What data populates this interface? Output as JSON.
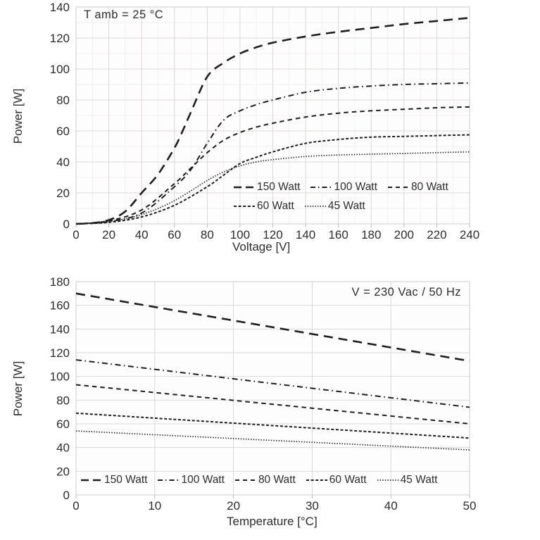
{
  "page": {
    "colors": {
      "line": "#1f1f1f",
      "text": "#2d2d2d",
      "grid_major_top": "#ded9d9",
      "grid_minor_top": "#f2efef",
      "grid_major_bottom": "#d9d9d9",
      "border": "#cfcccc",
      "background": "#ffffff"
    }
  },
  "chart_data": [
    {
      "type": "line",
      "title": "",
      "annotation": "T amb = 25 °C",
      "xlabel": "Voltage  [V]",
      "ylabel": "Power [W]",
      "xlim": [
        0,
        240
      ],
      "ylim": [
        0,
        140
      ],
      "xticks": [
        0,
        20,
        40,
        60,
        80,
        100,
        120,
        140,
        160,
        180,
        200,
        220,
        240
      ],
      "yticks": [
        0,
        20,
        40,
        60,
        80,
        100,
        120,
        140
      ],
      "grid": "major+minor",
      "minor_step": {
        "x": 10,
        "y": 10
      },
      "legend_position": "inside-bottom-right",
      "series": [
        {
          "name": "150 Watt",
          "dash": "long-dash",
          "x": [
            0,
            10,
            20,
            30,
            40,
            50,
            60,
            65,
            70,
            80,
            90,
            100,
            110,
            120,
            140,
            160,
            180,
            200,
            220,
            240
          ],
          "y": [
            0,
            0.5,
            2.5,
            8,
            20,
            32,
            49,
            60,
            72,
            95,
            104,
            110,
            114,
            117,
            121,
            124,
            126.5,
            129,
            131,
            133
          ]
        },
        {
          "name": "100 Watt",
          "dash": "dash-dot",
          "x": [
            0,
            20,
            40,
            60,
            70,
            80,
            90,
            100,
            110,
            120,
            140,
            160,
            180,
            200,
            220,
            240
          ],
          "y": [
            0,
            1.5,
            7,
            24,
            35,
            52,
            67,
            73,
            77,
            80,
            85,
            87.5,
            89,
            90,
            90.5,
            91
          ]
        },
        {
          "name": "80 Watt",
          "dash": "medium-dash",
          "x": [
            0,
            20,
            40,
            60,
            70,
            80,
            90,
            100,
            110,
            120,
            140,
            160,
            180,
            200,
            220,
            240
          ],
          "y": [
            0,
            2,
            9,
            26,
            36,
            46,
            54,
            59,
            62.5,
            65,
            69,
            71.5,
            73,
            74,
            75,
            75.5
          ]
        },
        {
          "name": "60 Watt",
          "dash": "short-dash",
          "x": [
            0,
            20,
            40,
            60,
            80,
            90,
            100,
            110,
            120,
            140,
            160,
            180,
            200,
            220,
            240
          ],
          "y": [
            0,
            1,
            4.5,
            12,
            24,
            31.5,
            39,
            43,
            46.5,
            52,
            54.5,
            56,
            56.5,
            57,
            57.5
          ]
        },
        {
          "name": "45 Watt",
          "dash": "dot",
          "x": [
            0,
            20,
            40,
            60,
            80,
            90,
            100,
            110,
            120,
            140,
            160,
            180,
            200,
            220,
            240
          ],
          "y": [
            0,
            1.5,
            6,
            15,
            28,
            33.5,
            37.5,
            40,
            41.5,
            43.5,
            44.5,
            45,
            45.5,
            46,
            46.5
          ]
        }
      ],
      "legend_rows": [
        [
          "150 Watt",
          "100 Watt",
          "80 Watt"
        ],
        [
          "60 Watt",
          "45 Watt"
        ]
      ]
    },
    {
      "type": "line",
      "title": "",
      "annotation": "V = 230 Vac / 50 Hz",
      "xlabel": "Temperature [°C]",
      "ylabel": "Power [W]",
      "xlim": [
        0,
        50
      ],
      "ylim": [
        0,
        180
      ],
      "xticks": [
        0,
        10,
        20,
        30,
        40,
        50
      ],
      "yticks": [
        0,
        20,
        40,
        60,
        80,
        100,
        120,
        140,
        160,
        180
      ],
      "grid": "major",
      "legend_position": "inside-bottom",
      "series": [
        {
          "name": "150 Watt",
          "dash": "long-dash",
          "x": [
            0,
            50
          ],
          "y": [
            170,
            113
          ]
        },
        {
          "name": "100 Watt",
          "dash": "dash-dot",
          "x": [
            0,
            50
          ],
          "y": [
            114,
            74
          ]
        },
        {
          "name": "80 Watt",
          "dash": "medium-dash",
          "x": [
            0,
            50
          ],
          "y": [
            93,
            60
          ]
        },
        {
          "name": "60 Watt",
          "dash": "short-dash",
          "x": [
            0,
            50
          ],
          "y": [
            69,
            48
          ]
        },
        {
          "name": "45 Watt",
          "dash": "dot",
          "x": [
            0,
            50
          ],
          "y": [
            54,
            38
          ]
        }
      ],
      "legend_rows": [
        [
          "150 Watt",
          "100 Watt",
          "80 Watt",
          "60 Watt",
          "45 Watt"
        ]
      ]
    }
  ]
}
